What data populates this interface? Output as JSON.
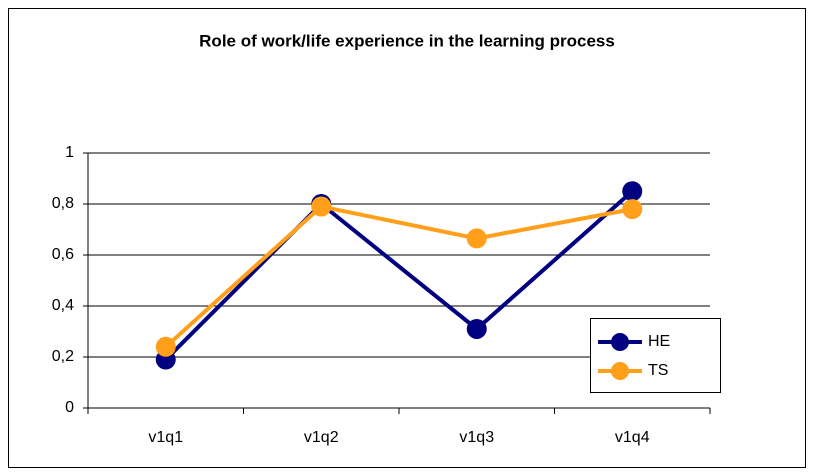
{
  "chart_data": {
    "type": "line",
    "title": "Role of work/life experience in the learning process",
    "categories": [
      "v1q1",
      "v1q2",
      "v1q3",
      "v1q4"
    ],
    "series": [
      {
        "name": "HE",
        "color": "#000080",
        "values": [
          0.19,
          0.8,
          0.31,
          0.85
        ]
      },
      {
        "name": "TS",
        "color": "#ff9f1a",
        "values": [
          0.24,
          0.79,
          0.665,
          0.78
        ]
      }
    ],
    "ylim": [
      0,
      1
    ],
    "yticks": [
      0,
      {
        "value": 0.2,
        "label": "0,2"
      },
      {
        "value": 0.4,
        "label": "0,4"
      },
      {
        "value": 0.6,
        "label": "0,6"
      },
      {
        "value": 0.8,
        "label": "0,8"
      },
      1
    ],
    "grid": true,
    "legend": "right"
  }
}
